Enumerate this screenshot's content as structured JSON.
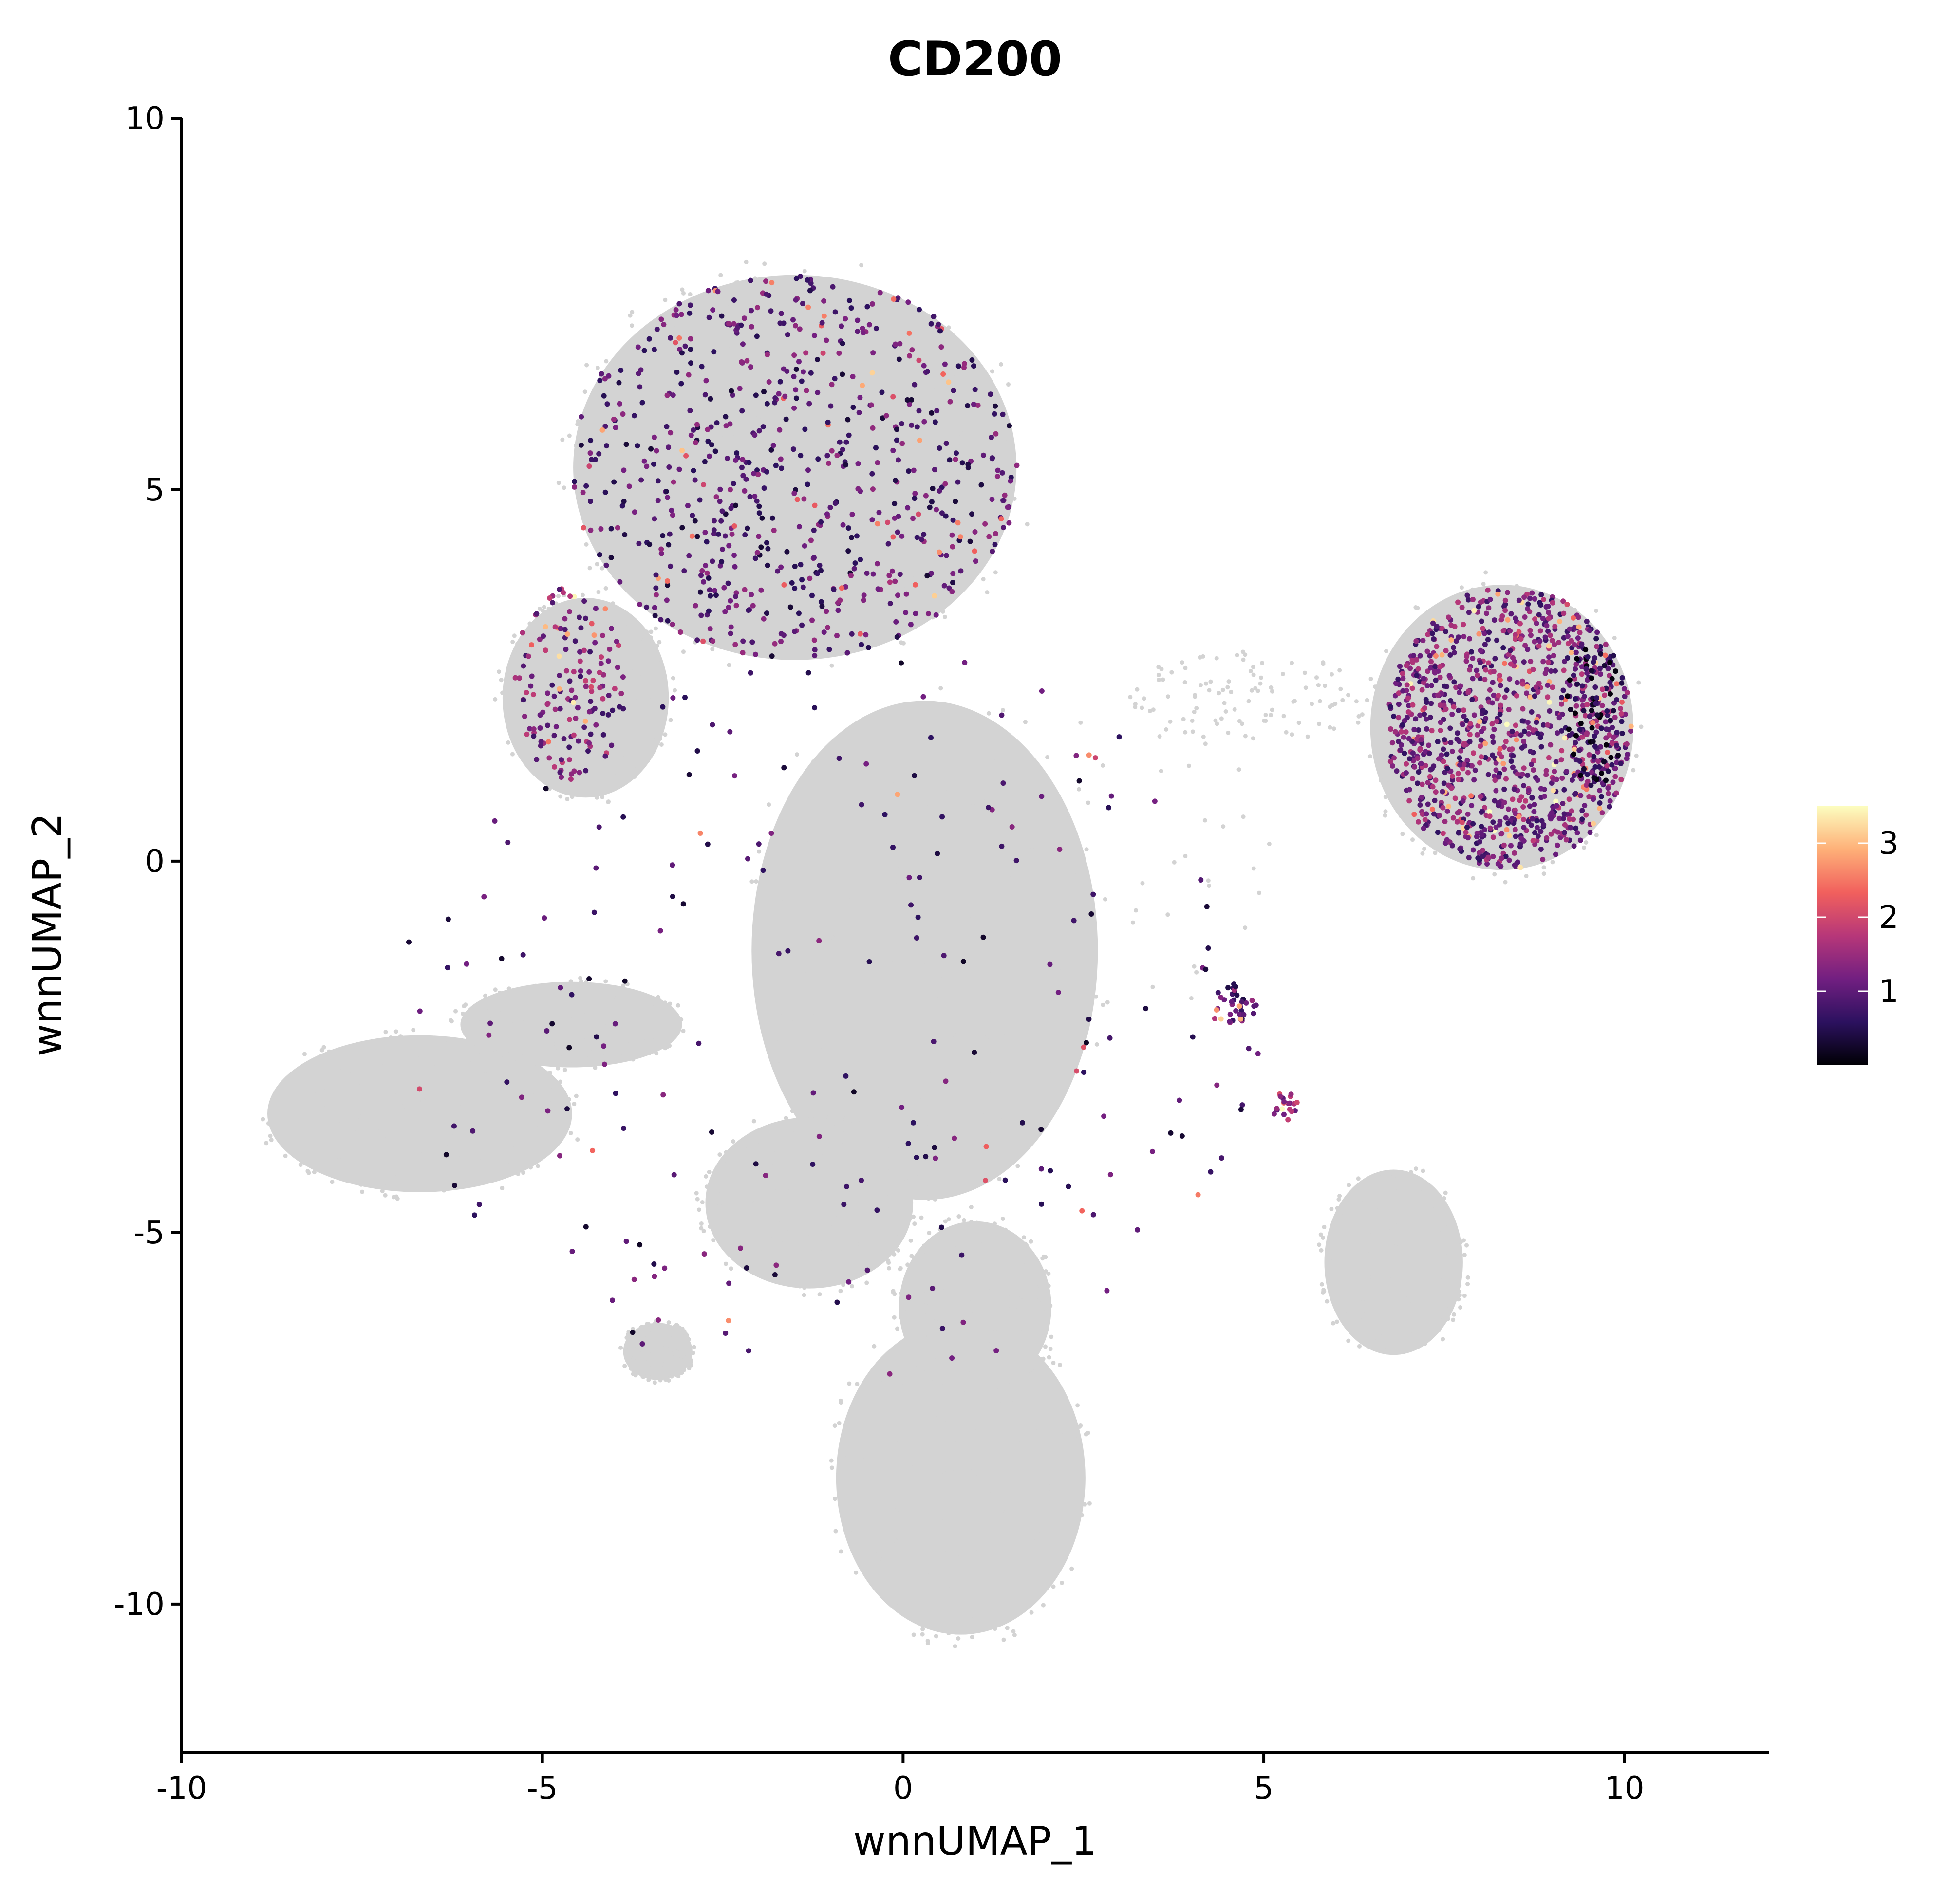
{
  "chart_data": {
    "type": "scatter",
    "title": "CD200",
    "xlabel": "wnnUMAP_1",
    "ylabel": "wnnUMAP_2",
    "xlim": [
      -10,
      12
    ],
    "ylim": [
      -12,
      10
    ],
    "x_ticks": [
      -10,
      -5,
      0,
      5,
      10
    ],
    "y_ticks": [
      10,
      5,
      0,
      -5,
      -10
    ],
    "x_tick_labels": [
      "-10",
      "-5",
      "0",
      "5",
      "10"
    ],
    "y_tick_labels": [
      "10",
      "5",
      "0",
      "-5",
      "-10"
    ],
    "grid": false,
    "background_color": "#d3d3d3",
    "colorscale": {
      "name": "magma",
      "min": 0,
      "max": 3.5,
      "ticks": [
        1,
        2,
        3
      ],
      "tick_labels": [
        "1",
        "2",
        "3"
      ],
      "colors": [
        "#000004",
        "#2c115f",
        "#721f81",
        "#b73779",
        "#f1605d",
        "#feb078",
        "#fcfdbf"
      ]
    },
    "legend_position": "right",
    "background_regions": [
      {
        "name": "top-cluster",
        "center": [
          -1.5,
          5.3
        ],
        "radius": [
          3.2,
          2.7
        ],
        "density": 1.0
      },
      {
        "name": "top-left-lobe",
        "center": [
          -4.4,
          2.2
        ],
        "radius": [
          1.2,
          1.4
        ],
        "density": 0.9
      },
      {
        "name": "center-column",
        "center": [
          0.3,
          -1.2
        ],
        "radius": [
          2.5,
          3.5
        ],
        "density": 0.6
      },
      {
        "name": "left-lobe",
        "center": [
          -6.7,
          -3.4
        ],
        "radius": [
          2.2,
          1.1
        ],
        "density": 0.9
      },
      {
        "name": "left-arm",
        "center": [
          -4.6,
          -2.2
        ],
        "radius": [
          1.6,
          0.6
        ],
        "density": 0.7
      },
      {
        "name": "lower-mid",
        "center": [
          -1.3,
          -4.6
        ],
        "radius": [
          1.5,
          1.2
        ],
        "density": 0.9
      },
      {
        "name": "bottom-cluster",
        "center": [
          0.8,
          -8.3
        ],
        "radius": [
          1.8,
          2.2
        ],
        "density": 1.0
      },
      {
        "name": "bottom-neck",
        "center": [
          1.0,
          -6.0
        ],
        "radius": [
          1.1,
          1.2
        ],
        "density": 0.9
      },
      {
        "name": "small-left-blob",
        "center": [
          -3.4,
          -6.6
        ],
        "radius": [
          0.5,
          0.4
        ],
        "density": 0.9
      },
      {
        "name": "right-cluster",
        "center": [
          8.3,
          1.8
        ],
        "radius": [
          1.9,
          2.0
        ],
        "density": 1.0
      },
      {
        "name": "right-lower-blob",
        "center": [
          6.8,
          -5.4
        ],
        "radius": [
          1.0,
          1.3
        ],
        "density": 0.9
      },
      {
        "name": "bridge",
        "center": [
          4.8,
          2.2
        ],
        "radius": [
          1.6,
          0.6
        ],
        "density": 0.4
      },
      {
        "name": "scatter-mid",
        "center": [
          3.2,
          0.0
        ],
        "radius": [
          2.0,
          2.0
        ],
        "density": 0.15
      }
    ],
    "expression_regions": [
      {
        "name": "top-cluster-expression",
        "center": [
          -1.5,
          5.3
        ],
        "radius": [
          3.1,
          2.6
        ],
        "count": 700,
        "mean": 0.9
      },
      {
        "name": "left-lobe-expression",
        "center": [
          -4.6,
          2.4
        ],
        "radius": [
          0.8,
          1.3
        ],
        "count": 150,
        "mean": 1.3
      },
      {
        "name": "right-cluster-expression",
        "center": [
          8.4,
          1.8
        ],
        "radius": [
          1.7,
          1.9
        ],
        "count": 1100,
        "mean": 1.2
      },
      {
        "name": "right-dark-edge",
        "center": [
          9.6,
          2.0
        ],
        "radius": [
          0.4,
          1.0
        ],
        "count": 80,
        "mean": 0.2
      },
      {
        "name": "small-cluster-expression",
        "center": [
          4.6,
          -1.9
        ],
        "radius": [
          0.3,
          0.3
        ],
        "count": 40,
        "mean": 1.0
      },
      {
        "name": "small-cluster-2-expression",
        "center": [
          5.3,
          -3.3
        ],
        "radius": [
          0.2,
          0.2
        ],
        "count": 20,
        "mean": 1.5
      },
      {
        "name": "sparse-expression",
        "center": [
          -1.0,
          -2.0
        ],
        "radius": [
          6.0,
          5.0
        ],
        "count": 220,
        "mean": 0.8
      }
    ]
  }
}
